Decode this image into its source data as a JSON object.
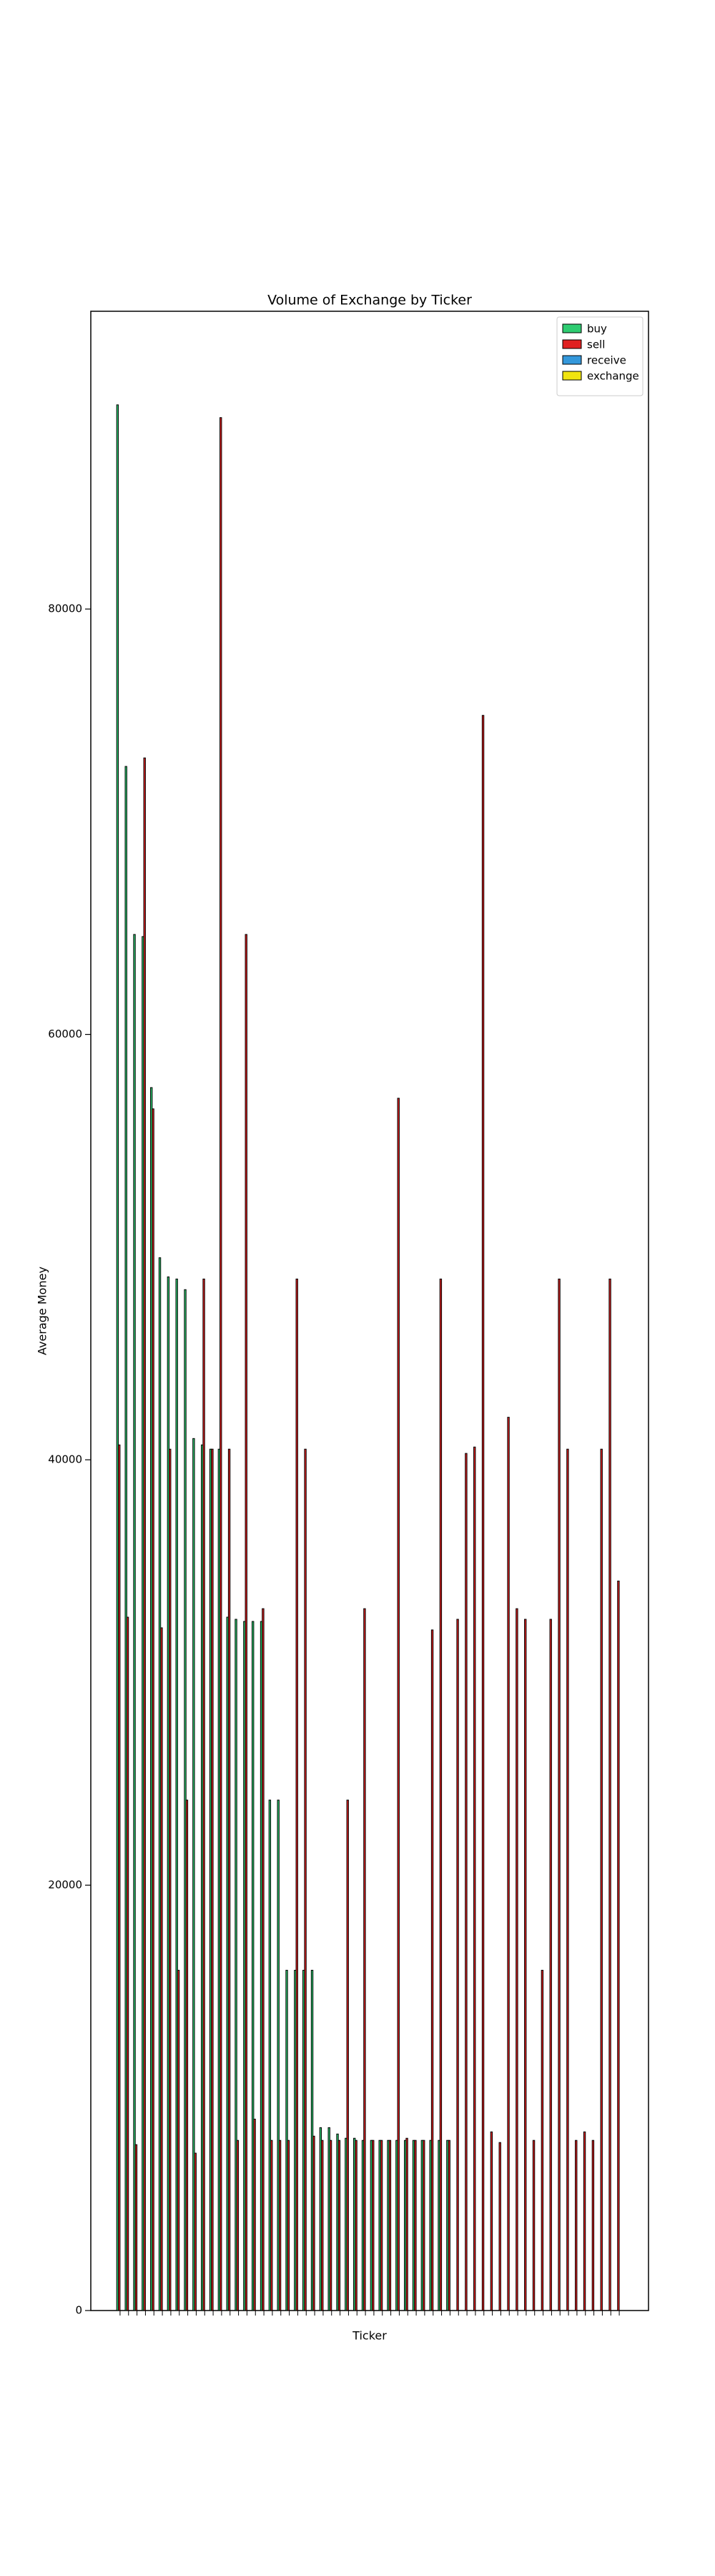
{
  "chart_data": {
    "type": "bar",
    "title": "Volume of Exchange by Ticker",
    "xlabel": "Ticker",
    "ylabel": "Average Money",
    "categories": [
      null,
      null,
      null,
      null,
      null,
      null,
      null,
      null,
      null,
      null,
      null,
      null,
      null,
      null,
      null,
      null,
      null,
      null,
      null,
      null,
      null,
      null,
      null,
      null,
      null,
      null,
      null,
      null,
      null,
      null,
      null,
      null,
      null,
      null,
      null,
      null,
      null,
      null,
      null,
      null,
      null,
      null,
      null,
      null,
      null,
      null,
      null,
      null,
      null,
      null,
      null,
      null,
      null,
      null,
      null,
      null,
      null,
      null,
      null,
      null
    ],
    "series": [
      {
        "name": "buy",
        "color": "#2ecc71",
        "values": [
          89600,
          72600,
          64700,
          64600,
          57500,
          49500,
          48600,
          48500,
          48000,
          41000,
          40700,
          40500,
          40500,
          32600,
          32500,
          32400,
          32400,
          32400,
          24000,
          24000,
          16000,
          16000,
          16000,
          16000,
          8600,
          8600,
          8300,
          8100,
          8100,
          8000,
          8000,
          8000,
          8000,
          8000,
          8000,
          8000,
          8000,
          8000,
          8000,
          8000,
          0,
          0,
          0,
          0,
          0,
          0,
          0,
          0,
          0,
          0,
          0,
          0,
          0,
          0,
          0,
          0,
          0,
          0,
          0,
          0
        ]
      },
      {
        "name": "sell",
        "color": "#e02020",
        "values": [
          40700,
          32600,
          7800,
          73000,
          56500,
          32100,
          40500,
          16000,
          24000,
          7400,
          48500,
          40500,
          89000,
          40500,
          8000,
          64700,
          9000,
          33000,
          8000,
          8000,
          8000,
          48500,
          40500,
          8200,
          8000,
          8000,
          8000,
          24000,
          8000,
          33000,
          8000,
          8000,
          8000,
          57000,
          8100,
          8000,
          8000,
          32000,
          48500,
          8000,
          32500,
          40300,
          40600,
          75000,
          8400,
          7900,
          42000,
          33000,
          32500,
          8000,
          16000,
          32500,
          48500,
          40500,
          8000,
          8400,
          8000,
          40500,
          48500,
          34300
        ]
      },
      {
        "name": "receive",
        "color": "#3498db",
        "values": [
          0,
          0,
          0,
          0,
          0,
          0,
          0,
          0,
          0,
          0,
          0,
          0,
          0,
          0,
          0,
          0,
          0,
          0,
          0,
          0,
          0,
          0,
          0,
          0,
          0,
          0,
          0,
          0,
          0,
          0,
          0,
          0,
          0,
          0,
          0,
          0,
          0,
          0,
          0,
          0,
          0,
          0,
          0,
          0,
          0,
          0,
          0,
          0,
          0,
          0,
          0,
          0,
          0,
          0,
          0,
          0,
          0,
          0,
          0,
          0
        ]
      },
      {
        "name": "exchange",
        "color": "#f1e40f",
        "values": [
          0,
          0,
          0,
          0,
          0,
          0,
          0,
          0,
          0,
          0,
          0,
          0,
          0,
          0,
          0,
          0,
          0,
          0,
          0,
          0,
          0,
          0,
          0,
          0,
          0,
          0,
          0,
          0,
          0,
          0,
          0,
          0,
          0,
          0,
          0,
          0,
          0,
          0,
          0,
          0,
          0,
          0,
          0,
          0,
          0,
          0,
          0,
          0,
          0,
          0,
          0,
          0,
          0,
          0,
          0,
          0,
          0,
          0,
          0,
          0
        ]
      }
    ],
    "ylim": [
      0,
      94000
    ],
    "yticks": [
      0,
      20000,
      40000,
      60000,
      80000
    ],
    "legend": "upper right"
  }
}
